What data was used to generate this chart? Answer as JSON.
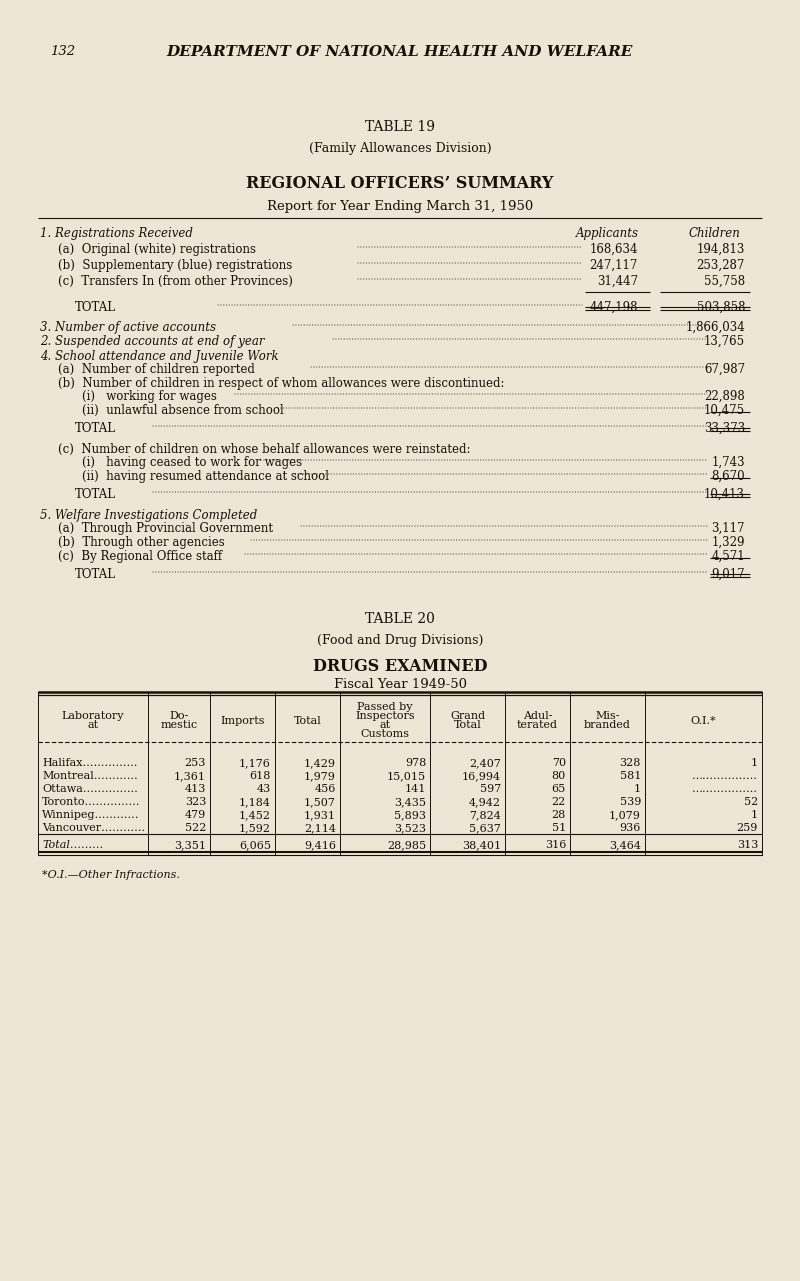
{
  "bg_color": "#ede5d5",
  "text_color": "#1a1008",
  "page_number": "132",
  "header": "DEPARTMENT OF NATIONAL HEALTH AND WELFARE",
  "table19_title": "TABLE 19",
  "table19_subtitle": "(Family Allowances Division)",
  "table19_heading1": "REGIONAL OFFICERS’ SUMMARY",
  "table19_heading2": "Report for Year Ending March 31, 1950",
  "section1_title": "1. Registrations Received",
  "col_h_applicants": "Applicants",
  "col_h_children": "Children",
  "reg_rows": [
    [
      "(a)  Original (white) registrations",
      "168,634",
      "194,813"
    ],
    [
      "(b)  Supplementary (blue) registrations",
      "247,117",
      "253,287"
    ],
    [
      "(c)  Transfers In (from other Provinces)",
      "31,447",
      "55,758"
    ]
  ],
  "reg_total_label": "Total",
  "reg_total_app": "447,198",
  "reg_total_ch": "503,858",
  "s2_label": "3. Number of active accounts",
  "s2_val": "1,866,034",
  "s3_label": "2. Suspended accounts at end of year",
  "s3_val": "13,765",
  "s4_title": "4. School attendance and Juvenile Work",
  "s4a_label": "(a)  Number of children reported",
  "s4a_val": "67,987",
  "s4b_label": "(b)  Number of children in respect of whom allowances were discontinued:",
  "s4bi_label": "(i)   working for wages",
  "s4bi_val": "22,898",
  "s4bii_label": "(ii)  unlawful absence from school",
  "s4bii_val": "10,475",
  "s4b_total_label": "Total",
  "s4b_total_val": "33,373",
  "s4c_label": "(c)  Number of children on whose behalf allowances were reinstated:",
  "s4ci_label": "(i)   having ceased to work for wages",
  "s4ci_val": "1,743",
  "s4cii_label": "(ii)  having resumed attendance at school",
  "s4cii_val": "8,670",
  "s4c_total_label": "Total",
  "s4c_total_val": "10,413",
  "s5_title": "5. Welfare Investigations Completed",
  "s5a_label": "(a)  Through Provincial Government",
  "s5a_val": "3,117",
  "s5b_label": "(b)  Through other agencies",
  "s5b_val": "1,329",
  "s5c_label": "(c)  By Regional Office staff",
  "s5c_val": "4,571",
  "s5_total_label": "Total",
  "s5_total_val": "9,017",
  "table20_title": "TABLE 20",
  "table20_subtitle": "(Food and Drug Divisions)",
  "table20_h1": "DRUGS EXAMINED",
  "table20_h2": "Fiscal Year 1949-50",
  "t20_col_headers": [
    "Laboratory\nat",
    "Do-\nmestic",
    "Imports",
    "Total",
    "Passed by\nInspectors\nat\nCustoms",
    "Grand\nTotal",
    "Adul-\nterated",
    "Mis-\nbranded",
    "O.I.*"
  ],
  "t20_rows": [
    [
      "Halifax……………",
      "253",
      "1,176",
      "1,429",
      "978",
      "2,407",
      "70",
      "328",
      "1"
    ],
    [
      "Montreal…………",
      "1,361",
      "618",
      "1,979",
      "15,015",
      "16,994",
      "80",
      "581",
      "………………"
    ],
    [
      "Ottawa……………",
      "413",
      "43",
      "456",
      "141",
      "597",
      "65",
      "1",
      "………………"
    ],
    [
      "Toronto……………",
      "323",
      "1,184",
      "1,507",
      "3,435",
      "4,942",
      "22",
      "539",
      "52"
    ],
    [
      "Winnipeg…………",
      "479",
      "1,452",
      "1,931",
      "5,893",
      "7,824",
      "28",
      "1,079",
      "1"
    ],
    [
      "Vancouver…………",
      "522",
      "1,592",
      "2,114",
      "3,523",
      "5,637",
      "51",
      "936",
      "259"
    ]
  ],
  "t20_total": [
    "Total………",
    "3,351",
    "6,065",
    "9,416",
    "28,985",
    "38,401",
    "316",
    "3,464",
    "313"
  ],
  "t20_footnote": "*O.I.—Other Infractions."
}
